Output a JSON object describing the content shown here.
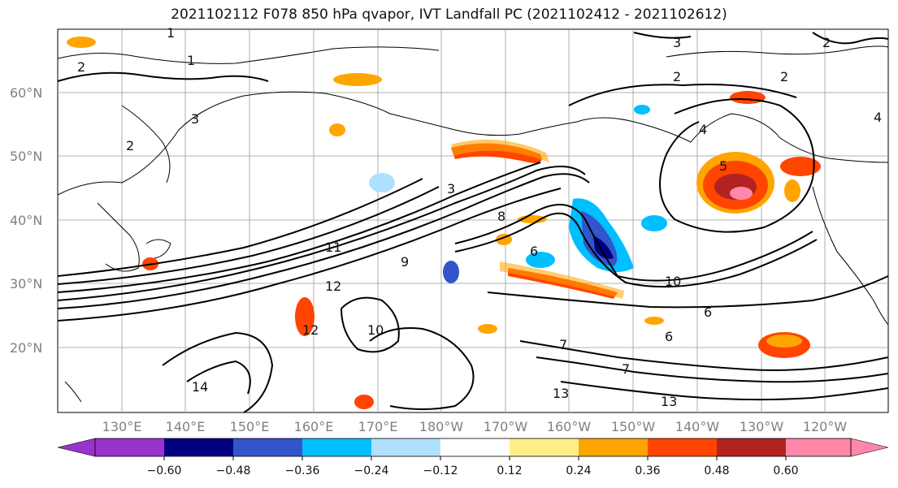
{
  "title": "2021102112 F078 850 hPa qvapor, IVT Landfall PC (2021102412 - 2021102612)",
  "map": {
    "lat_labels": [
      "60°N",
      "50°N",
      "40°N",
      "30°N",
      "20°N"
    ],
    "lon_labels": [
      "130°E",
      "140°E",
      "150°E",
      "160°E",
      "170°E",
      "180°W",
      "170°W",
      "160°W",
      "150°W",
      "140°W",
      "130°W",
      "120°W"
    ],
    "contour_labels": [
      "1",
      "1",
      "2",
      "3",
      "2",
      "2",
      "3",
      "2",
      "2",
      "3",
      "4",
      "4",
      "5",
      "6",
      "7",
      "8",
      "9",
      "10",
      "11",
      "12",
      "12",
      "13",
      "13",
      "14",
      "10",
      "6",
      "6",
      "7"
    ],
    "land_color": "#ffffff",
    "contour_color": "#000000"
  },
  "colorbar": {
    "tick_labels": [
      "−0.60",
      "−0.48",
      "−0.36",
      "−0.24",
      "−0.12",
      "0.12",
      "0.24",
      "0.36",
      "0.48",
      "0.60"
    ],
    "colors": [
      "#9933cc",
      "#000080",
      "#3355cc",
      "#00bfff",
      "#b0e0ff",
      "#ffffff",
      "#ffee88",
      "#ffa500",
      "#ff4500",
      "#b22222",
      "#ff88aa"
    ]
  }
}
